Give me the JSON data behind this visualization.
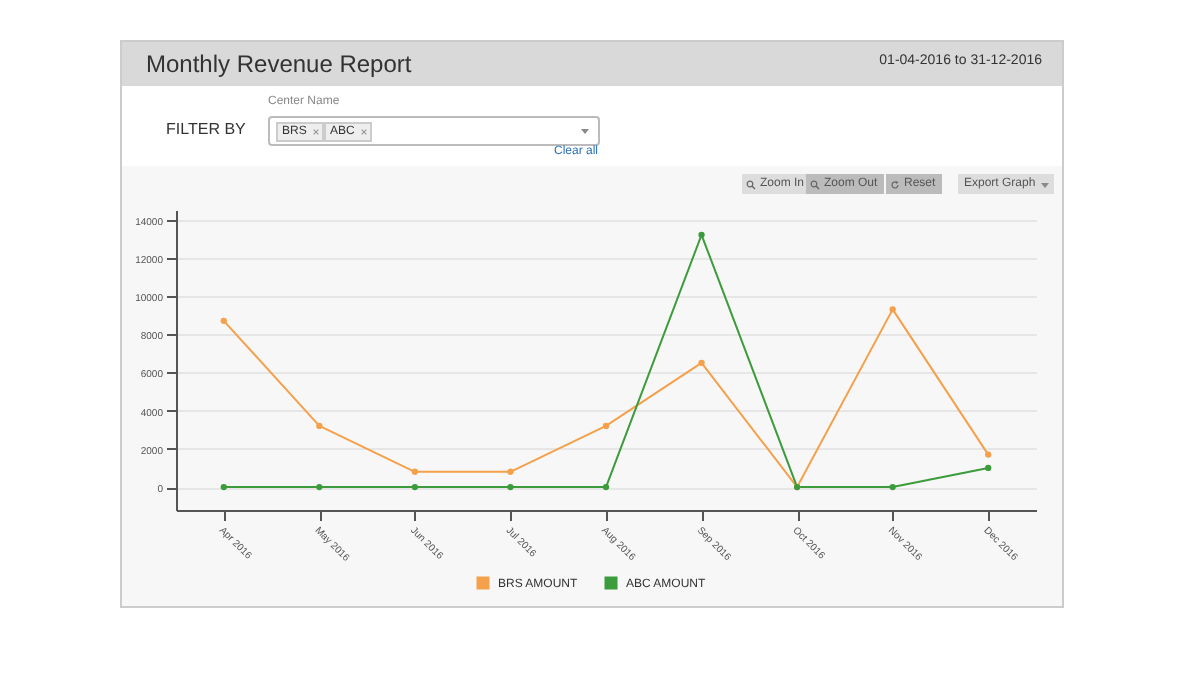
{
  "chart_data": {
    "type": "line",
    "title": "Monthly Revenue Report",
    "subtitle": "01-04-2016 to 31-12-2016",
    "annotations": [
      "FILTER BY",
      "Center Name",
      "BRS",
      "ABC",
      "Clear all",
      "Zoom In",
      "Zoom Out",
      "Reset",
      "Export Graph"
    ],
    "categories": [
      "Apr 2016",
      "May 2016",
      "Jun 2016",
      "Jul 2016",
      "Aug 2016",
      "Sep 2016",
      "Oct 2016",
      "Nov 2016",
      "Dec 2016"
    ],
    "series": [
      {
        "name": "BRS AMOUNT",
        "color": "#f5a04a",
        "values": [
          8700,
          3200,
          800,
          800,
          3200,
          6500,
          0,
          9300,
          1700
        ]
      },
      {
        "name": "ABC AMOUNT",
        "color": "#3c9c3c",
        "values": [
          0,
          0,
          0,
          0,
          0,
          13200,
          0,
          0,
          1000
        ]
      }
    ],
    "ylim": [
      -1200,
      14500
    ],
    "yticks": [
      0,
      2000,
      4000,
      6000,
      8000,
      10000,
      12000,
      14000
    ],
    "grid": "y",
    "legend": "bottom",
    "marker": "circle",
    "line_style": "solid"
  }
}
